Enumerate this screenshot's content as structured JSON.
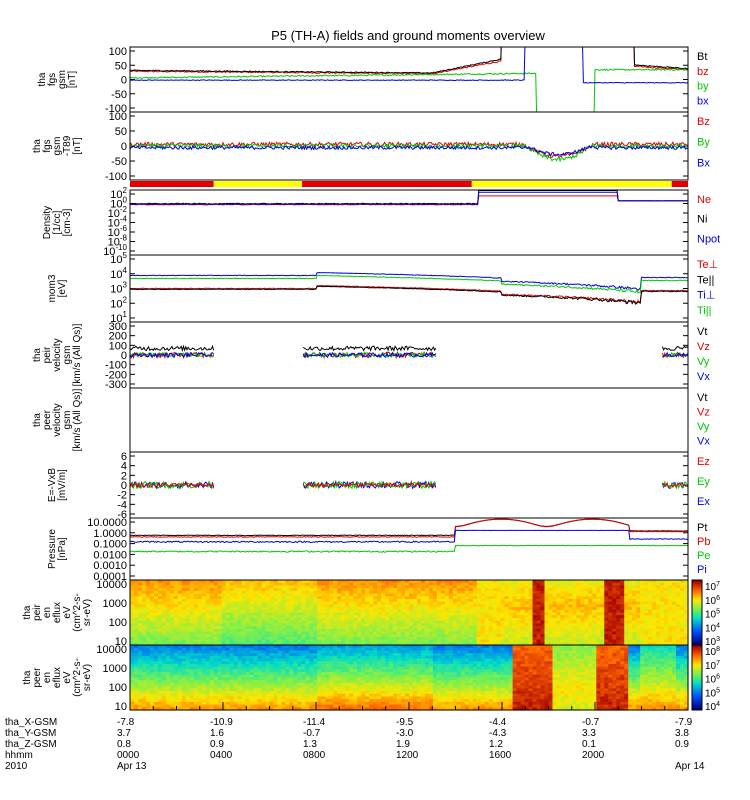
{
  "title": "P5 (TH-A) fields and ground moments overview",
  "chart_data": [
    {
      "type": "line",
      "panel_key": "fgs",
      "ylabel": [
        "tha",
        "fgs",
        "gsm",
        "[nT]"
      ],
      "yticks": [
        "100",
        "50",
        "0",
        "-50",
        "-100"
      ],
      "ylim": [
        -100,
        100
      ],
      "legend": [
        {
          "name": "Bt",
          "color": "#000000"
        },
        {
          "name": "bz",
          "color": "#e00000"
        },
        {
          "name": "by",
          "color": "#00c800"
        },
        {
          "name": "bx",
          "color": "#0000e0"
        }
      ]
    },
    {
      "type": "line",
      "panel_key": "fgs_t89",
      "ylabel": [
        "tha",
        "fgs",
        "gsm",
        "-T89",
        "[nT]"
      ],
      "yticks": [
        "100",
        "50",
        "0",
        "-50",
        "-100"
      ],
      "ylim": [
        -100,
        100
      ],
      "legend": [
        {
          "name": "Bz",
          "color": "#e00000"
        },
        {
          "name": "By",
          "color": "#00c800"
        },
        {
          "name": "Bx",
          "color": "#0000e0"
        }
      ]
    },
    {
      "type": "line",
      "panel_key": "density",
      "ylabel": [
        "Density",
        "[1/cc]",
        "[cm-3]"
      ],
      "yticks": [
        "10^2",
        "10^0",
        "10^-2",
        "10^-4",
        "10^-6",
        "10^-8",
        "10^-10"
      ],
      "log_scale": true,
      "ylim": [
        1e-10,
        100
      ],
      "legend": [
        {
          "name": "Ne",
          "color": "#e00000"
        },
        {
          "name": "Ni",
          "color": "#000000"
        },
        {
          "name": "Npot",
          "color": "#0000e0"
        }
      ]
    },
    {
      "type": "line",
      "panel_key": "temperature",
      "ylabel": [
        "mom3",
        "[eV]"
      ],
      "yticks": [
        "10^5",
        "10^4",
        "10^3",
        "10^2",
        "10^1"
      ],
      "log_scale": true,
      "ylim": [
        10,
        100000
      ],
      "legend": [
        {
          "name": "Te⊥",
          "color": "#e00000"
        },
        {
          "name": "Te||",
          "color": "#000000"
        },
        {
          "name": "Ti⊥",
          "color": "#0000e0"
        },
        {
          "name": "Ti||",
          "color": "#00c800"
        }
      ]
    },
    {
      "type": "line",
      "panel_key": "peir_velocity",
      "ylabel": [
        "tha",
        "peir",
        "velocity",
        "gsm",
        "[km/s (All Qs)]"
      ],
      "yticks": [
        "300",
        "200",
        "100",
        "0",
        "-100",
        "-200",
        "-300"
      ],
      "ylim": [
        -300,
        300
      ],
      "legend": [
        {
          "name": "Vt",
          "color": "#000000"
        },
        {
          "name": "Vz",
          "color": "#e00000"
        },
        {
          "name": "Vy",
          "color": "#00c800"
        },
        {
          "name": "Vx",
          "color": "#0000e0"
        }
      ]
    },
    {
      "type": "line",
      "panel_key": "peer_velocity",
      "ylabel": [
        "tha",
        "peer",
        "velocity",
        "gsm",
        "[km/s (All Qs)]"
      ],
      "yticks": [],
      "legend": [
        {
          "name": "Vt",
          "color": "#000000"
        },
        {
          "name": "Vz",
          "color": "#e00000"
        },
        {
          "name": "Vy",
          "color": "#00c800"
        },
        {
          "name": "Vx",
          "color": "#0000e0"
        }
      ]
    },
    {
      "type": "line",
      "panel_key": "efield",
      "ylabel": [
        "E=-VxB",
        "[mV/m]"
      ],
      "yticks": [
        "6",
        "4",
        "2",
        "0",
        "-2",
        "-4",
        "-6"
      ],
      "ylim": [
        -6,
        6
      ],
      "legend": [
        {
          "name": "Ez",
          "color": "#e00000"
        },
        {
          "name": "Ey",
          "color": "#00c800"
        },
        {
          "name": "Ex",
          "color": "#0000e0"
        }
      ]
    },
    {
      "type": "line",
      "panel_key": "pressure",
      "ylabel": [
        "Pressure",
        "[nPa]"
      ],
      "yticks": [
        "10.0000",
        "1.0000",
        "0.1000",
        "0.0100",
        "0.0010",
        "0.0001"
      ],
      "log_scale": true,
      "ylim": [
        0.0001,
        10
      ],
      "legend": [
        {
          "name": "Pt",
          "color": "#000000"
        },
        {
          "name": "Pb",
          "color": "#e00000"
        },
        {
          "name": "Pe",
          "color": "#00c800"
        },
        {
          "name": "Pi",
          "color": "#0000e0"
        }
      ]
    },
    {
      "type": "heatmap",
      "panel_key": "peir_spec",
      "ylabel": [
        "tha",
        "peir",
        "en",
        "eflux",
        "eV",
        "(cm^2-s-",
        "sr-eV)"
      ],
      "yticks": [
        "10000",
        "1000",
        "100",
        "10"
      ],
      "log_scale": true,
      "colorbar_ticks": [
        "10^7",
        "10^6",
        "10^5",
        "10^4",
        "10^3"
      ]
    },
    {
      "type": "heatmap",
      "panel_key": "peer_spec",
      "ylabel": [
        "tha",
        "peer",
        "en",
        "eflux",
        "eV",
        "(cm^2-s-",
        "sr-eV)"
      ],
      "yticks": [
        "10000",
        "1000",
        "100",
        "10"
      ],
      "log_scale": true,
      "colorbar_ticks": [
        "10^8",
        "10^7",
        "10^6",
        "10^5",
        "10^4"
      ]
    }
  ],
  "xaxis": {
    "row_labels": [
      "tha_X-GSM",
      "tha_Y-GSM",
      "tha_Z-GSM",
      "hhmm",
      "2010"
    ],
    "columns": [
      [
        "-7.8",
        "3.7",
        "0.8",
        "0000",
        "Apr 13"
      ],
      [
        "-10.9",
        "1.6",
        "0.9",
        "0400",
        ""
      ],
      [
        "-11.4",
        "-0.7",
        "1.3",
        "0800",
        ""
      ],
      [
        "-9.5",
        "-3.0",
        "1.9",
        "1200",
        ""
      ],
      [
        "-4.4",
        "-4.3",
        "1.2",
        "1600",
        ""
      ],
      [
        "-0.7",
        "3.3",
        "0.1",
        "2000",
        ""
      ],
      [
        "-7.9",
        "3.8",
        "0.9",
        "",
        "Apr 14"
      ]
    ]
  },
  "mode_bar": {
    "segments": [
      {
        "from": 0.0,
        "to": 3.6,
        "color": "#e00000"
      },
      {
        "from": 3.6,
        "to": 7.4,
        "color": "#ffff00"
      },
      {
        "from": 7.4,
        "to": 14.7,
        "color": "#e00000"
      },
      {
        "from": 14.7,
        "to": 23.3,
        "color": "#ffff00"
      },
      {
        "from": 23.3,
        "to": 24.0,
        "color": "#e00000"
      }
    ]
  }
}
